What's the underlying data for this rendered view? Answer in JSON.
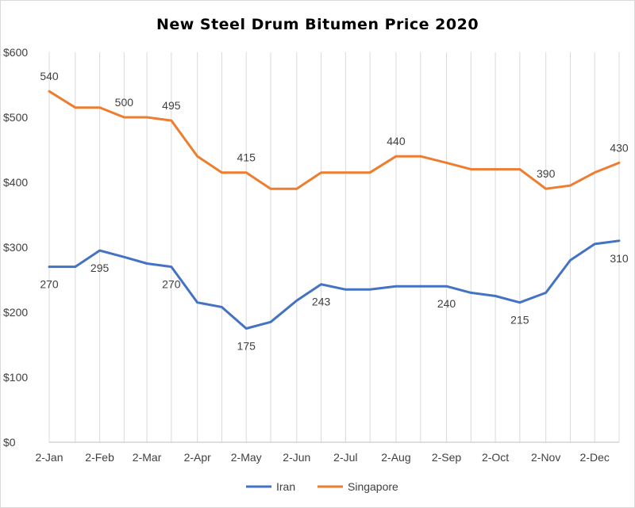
{
  "chart_data": {
    "type": "line",
    "title": "New Steel Drum Bitumen Price 2020",
    "xlabel": "",
    "ylabel": "",
    "x_dates": [
      "2020-01-02",
      "2020-01-18",
      "2020-02-02",
      "2020-02-17",
      "2020-03-02",
      "2020-03-17",
      "2020-04-02",
      "2020-04-17",
      "2020-05-02",
      "2020-05-17",
      "2020-06-02",
      "2020-06-17",
      "2020-07-02",
      "2020-07-17",
      "2020-08-02",
      "2020-08-17",
      "2020-09-02",
      "2020-09-17",
      "2020-10-02",
      "2020-10-17",
      "2020-11-02",
      "2020-11-17",
      "2020-12-02",
      "2020-12-17"
    ],
    "x_tick_dates": [
      "2020-01-02",
      "2020-02-02",
      "2020-03-02",
      "2020-04-02",
      "2020-05-02",
      "2020-06-02",
      "2020-07-02",
      "2020-08-02",
      "2020-09-02",
      "2020-10-02",
      "2020-11-02",
      "2020-12-02"
    ],
    "x_tick_labels": [
      "2-Jan",
      "2-Feb",
      "2-Mar",
      "2-Apr",
      "2-May",
      "2-Jun",
      "2-Jul",
      "2-Aug",
      "2-Sep",
      "2-Oct",
      "2-Nov",
      "2-Dec"
    ],
    "x_range": [
      "2020-01-02",
      "2020-12-17"
    ],
    "ylim": [
      0,
      600
    ],
    "y_ticks": [
      0,
      100,
      200,
      300,
      400,
      500,
      600
    ],
    "y_tick_labels": [
      "$0",
      "$100",
      "$200",
      "$300",
      "$400",
      "$500",
      "$600"
    ],
    "vertical_grid": true,
    "legend_position": "bottom",
    "series": [
      {
        "name": "Iran",
        "color": "#4472C4",
        "values": [
          270,
          270,
          295,
          285,
          275,
          270,
          215,
          208,
          175,
          185,
          218,
          243,
          235,
          235,
          240,
          240,
          240,
          230,
          225,
          215,
          230,
          280,
          305,
          310
        ],
        "labels": [
          {
            "index": 0,
            "text": "270",
            "pos": "below"
          },
          {
            "index": 2,
            "text": "295",
            "pos": "below"
          },
          {
            "index": 5,
            "text": "270",
            "pos": "below"
          },
          {
            "index": 8,
            "text": "175",
            "pos": "below"
          },
          {
            "index": 11,
            "text": "243",
            "pos": "below"
          },
          {
            "index": 16,
            "text": "240",
            "pos": "below"
          },
          {
            "index": 19,
            "text": "215",
            "pos": "below"
          },
          {
            "index": 23,
            "text": "310",
            "pos": "below"
          }
        ]
      },
      {
        "name": "Singapore",
        "color": "#ED7D31",
        "values": [
          540,
          515,
          515,
          500,
          500,
          495,
          440,
          415,
          415,
          390,
          390,
          415,
          415,
          415,
          440,
          440,
          430,
          420,
          420,
          420,
          390,
          395,
          415,
          430
        ],
        "labels": [
          {
            "index": 0,
            "text": "540",
            "pos": "above"
          },
          {
            "index": 3,
            "text": "500",
            "pos": "above"
          },
          {
            "index": 5,
            "text": "495",
            "pos": "above"
          },
          {
            "index": 8,
            "text": "415",
            "pos": "above"
          },
          {
            "index": 14,
            "text": "440",
            "pos": "above"
          },
          {
            "index": 20,
            "text": "390",
            "pos": "above"
          },
          {
            "index": 23,
            "text": "430",
            "pos": "above"
          }
        ]
      }
    ]
  }
}
